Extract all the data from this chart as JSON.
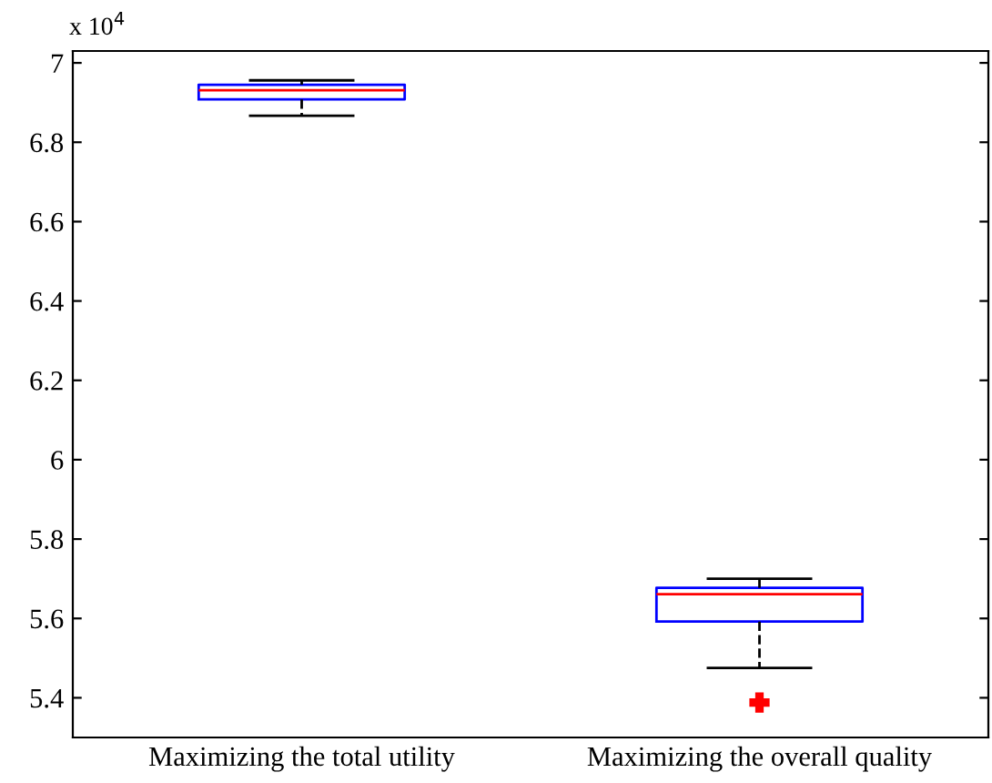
{
  "chart_data": {
    "type": "box",
    "categories": [
      "Maximizing the total utility",
      "Maximizing the overall quality"
    ],
    "boxes": [
      {
        "low": 6.867,
        "q1": 6.908,
        "median": 6.931,
        "q3": 6.945,
        "high": 6.956
      },
      {
        "low": 5.475,
        "q1": 5.592,
        "median": 5.661,
        "q3": 5.677,
        "high": 5.7,
        "outliers": [
          5.388
        ]
      }
    ],
    "color": "#0000ff",
    "ylim": [
      5.3,
      7.03
    ],
    "yticks": [
      5.4,
      5.6,
      5.8,
      6,
      6.2,
      6.4,
      6.6,
      6.8,
      7
    ],
    "annotations": [
      "x 10$^{4}$"
    ],
    "grid": false,
    "line_style": "dashed",
    "marker": "cross"
  }
}
